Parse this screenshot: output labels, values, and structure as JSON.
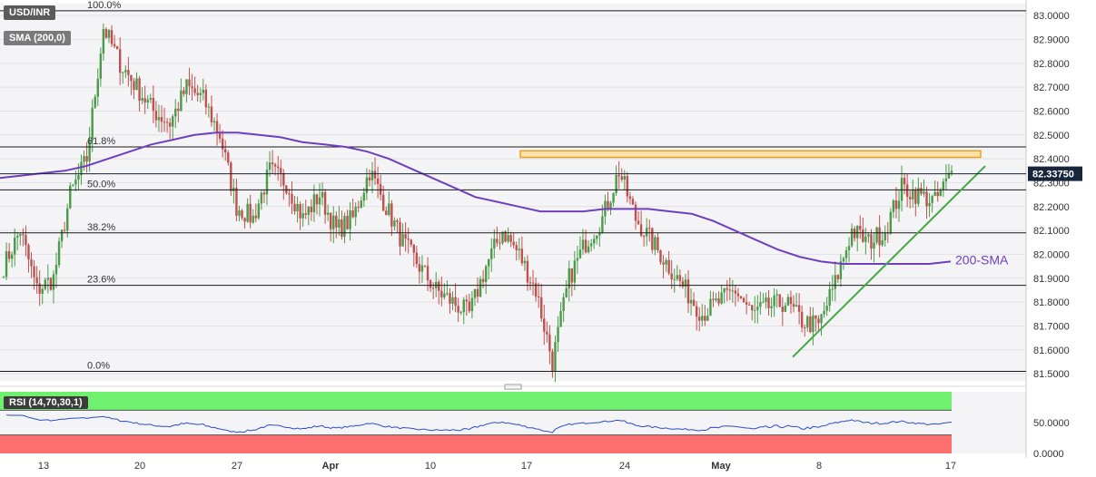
{
  "header": {
    "symbol": "USD/INR",
    "indicator": "SMA (200,0)"
  },
  "colors": {
    "bull": "#4a9a4a",
    "bear": "#c0504d",
    "sma": "#6f3fc0",
    "trendline": "#43a843",
    "resistance_fill": "#fbe3b0",
    "resistance_stroke": "#f0a020",
    "price_tag_bg": "#17263d",
    "rsi_line": "#2a4ec8",
    "rsi_overbought": "#6ff06f",
    "rsi_oversold": "#ff6f6f"
  },
  "chart_data": [
    {
      "type": "candlestick",
      "title": "",
      "ylim": [
        81.47,
        83.05
      ],
      "y_ticks": [
        "83.0000",
        "82.9000",
        "82.8000",
        "82.7000",
        "82.6000",
        "82.5000",
        "82.4000",
        "82.3000",
        "82.2000",
        "82.1000",
        "82.0000",
        "81.9000",
        "81.8000",
        "81.7000",
        "81.6000",
        "81.5000"
      ],
      "x_labels": [
        "13",
        "20",
        "27",
        "Apr",
        "10",
        "17",
        "24",
        "May",
        "8",
        "17"
      ],
      "x_label_bold": [
        "Apr",
        "May"
      ],
      "current_price": "82.33750",
      "fibonacci_levels": [
        {
          "label": "100.0%",
          "value": 83.02
        },
        {
          "label": "61.8%",
          "value": 82.45
        },
        {
          "label": "50.0%",
          "value": 82.27
        },
        {
          "label": "38.2%",
          "value": 82.09
        },
        {
          "label": "23.6%",
          "value": 81.87
        },
        {
          "label": "0.0%",
          "value": 81.51
        }
      ],
      "resistance_zone": [
        82.41,
        82.43
      ],
      "support_trendline": {
        "from": 81.57,
        "to": 82.37
      },
      "sma_label": "200-SMA",
      "sma_200": [
        82.32,
        82.33,
        82.34,
        82.35,
        82.37,
        82.4,
        82.43,
        82.46,
        82.48,
        82.5,
        82.51,
        82.51,
        82.5,
        82.49,
        82.47,
        82.46,
        82.45,
        82.43,
        82.4,
        82.36,
        82.32,
        82.28,
        82.24,
        82.22,
        82.2,
        82.18,
        82.18,
        82.18,
        82.19,
        82.19,
        82.19,
        82.18,
        82.17,
        82.14,
        82.1,
        82.06,
        82.02,
        81.99,
        81.97,
        81.96,
        81.96,
        81.96,
        81.96,
        81.96,
        81.97
      ],
      "candle_anchors": [
        81.95,
        82.1,
        81.85,
        81.9,
        82.25,
        82.4,
        82.95,
        82.8,
        82.7,
        82.6,
        82.55,
        82.7,
        82.65,
        82.5,
        82.2,
        82.15,
        82.35,
        82.3,
        82.15,
        82.25,
        82.1,
        82.15,
        82.35,
        82.2,
        82.05,
        81.95,
        81.85,
        81.8,
        81.75,
        81.95,
        82.1,
        82.0,
        81.85,
        81.55,
        81.9,
        82.05,
        82.15,
        82.35,
        82.15,
        82.05,
        81.95,
        81.85,
        81.75,
        81.8,
        81.85,
        81.75,
        81.78,
        81.8,
        81.72,
        81.7,
        81.88,
        82.1,
        82.05,
        82.1,
        82.28,
        82.25,
        82.22,
        82.34
      ],
      "candles_per_anchor": 6
    },
    {
      "type": "line",
      "title": "",
      "indicator_label": "RSI (14,70,30,1)",
      "ylim": [
        0,
        100
      ],
      "y_ticks": [
        "50.0000",
        "0.0000"
      ],
      "overbought": 70,
      "oversold": 30
    }
  ]
}
